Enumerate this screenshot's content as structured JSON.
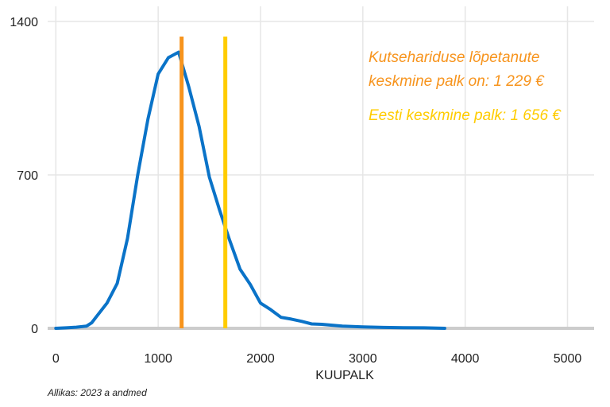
{
  "chart_data": {
    "type": "line",
    "xlabel": "KUUPALK",
    "ylabel": "",
    "xlim": [
      -80,
      5260
    ],
    "ylim": [
      0,
      1400
    ],
    "xticks": [
      0,
      1000,
      2000,
      3000,
      4000,
      5000
    ],
    "yticks": [
      0,
      700,
      1400
    ],
    "grid": true,
    "colors": {
      "line": "#0a73c8",
      "grid": "#e6e6e6",
      "baseline": "#cccccc"
    },
    "series": [
      {
        "color": "#0a73c8",
        "x": [
          0,
          100,
          200,
          300,
          350,
          400,
          500,
          600,
          700,
          800,
          900,
          1000,
          1100,
          1200,
          1300,
          1400,
          1500,
          1600,
          1700,
          1800,
          1900,
          2000,
          2100,
          2200,
          2300,
          2400,
          2500,
          2600,
          2700,
          2800,
          3000,
          3200,
          3400,
          3600,
          3800
        ],
        "y": [
          0,
          2,
          5,
          10,
          25,
          55,
          115,
          205,
          410,
          700,
          955,
          1160,
          1235,
          1260,
          1100,
          920,
          690,
          540,
          400,
          270,
          200,
          115,
          85,
          50,
          42,
          32,
          20,
          18,
          14,
          10,
          6,
          4,
          3,
          2,
          0
        ]
      }
    ],
    "vlines": [
      {
        "x": 1229,
        "color": "#f7941d"
      },
      {
        "x": 1656,
        "color": "#ffcc00"
      }
    ],
    "annotations": [
      {
        "lines": [
          "Kutsehariduse lõpetanute",
          " keskmine palk on: 1 229 €"
        ],
        "color": "#f7941d"
      },
      {
        "lines": [
          "Eesti keskmine palk: 1 656 €"
        ],
        "color": "#ffcc00"
      }
    ],
    "source": "Allikas: 2023 a andmed"
  }
}
